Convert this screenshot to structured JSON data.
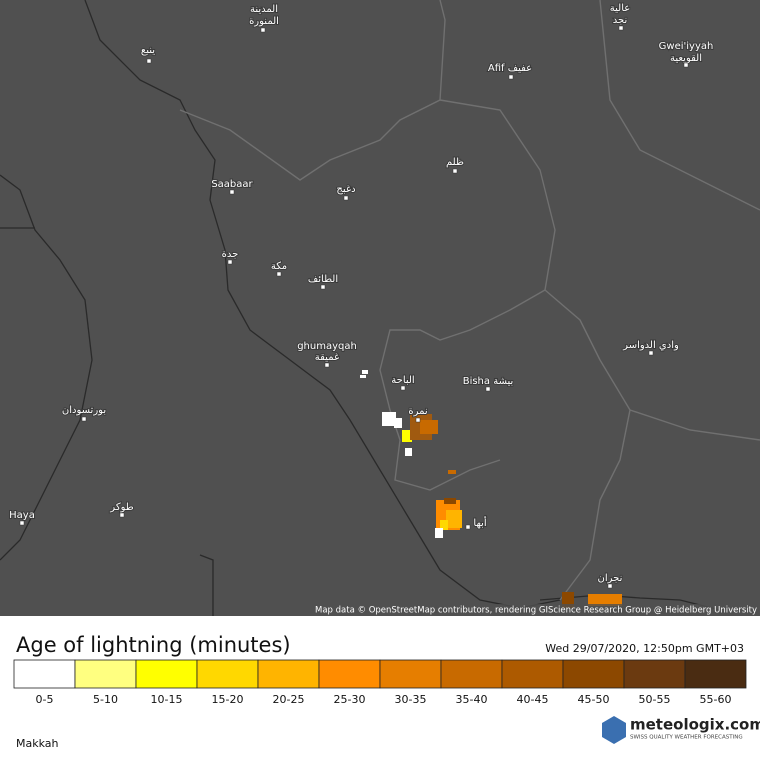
{
  "map_labels": [
    "المدينة",
    "المنورة",
    "ينبع",
    "عالية",
    "نجد",
    "Afif عفيف",
    "Gwei'iyyah",
    "القويعية",
    "ظلم",
    "Saabaar",
    "دغبج",
    "جدة",
    "مكة",
    "الطائف",
    "ghumayqah",
    "غميقة",
    "وادي الدواسر",
    "الباحة",
    "Bisha بيشة",
    "بورتسودان",
    "نمرة",
    "طوكر",
    "Haya",
    "أبها",
    "نجران"
  ],
  "attribution": "Map data © OpenStreetMap contributors, rendering GIScience Research Group @ Heidelberg University",
  "legend": {
    "title": "Age of lightning (minutes)",
    "timestamp": "Wed 29/07/2020, 12:50pm GMT+03",
    "bins": [
      {
        "label": "0-5",
        "color": "#ffffff"
      },
      {
        "label": "5-10",
        "color": "#ffff80"
      },
      {
        "label": "10-15",
        "color": "#ffff00"
      },
      {
        "label": "15-20",
        "color": "#ffd800"
      },
      {
        "label": "20-25",
        "color": "#ffb400"
      },
      {
        "label": "25-30",
        "color": "#ff8c00"
      },
      {
        "label": "30-35",
        "color": "#e67e00"
      },
      {
        "label": "35-40",
        "color": "#c86a00"
      },
      {
        "label": "40-45",
        "color": "#ad5a00"
      },
      {
        "label": "45-50",
        "color": "#8c4800"
      },
      {
        "label": "50-55",
        "color": "#6b3a10"
      },
      {
        "label": "55-60",
        "color": "#4a2c12"
      }
    ]
  },
  "region": "Makkah",
  "brand": {
    "name": "meteologix.com",
    "tagline": "SWISS QUALITY WEATHER FORECASTING"
  }
}
